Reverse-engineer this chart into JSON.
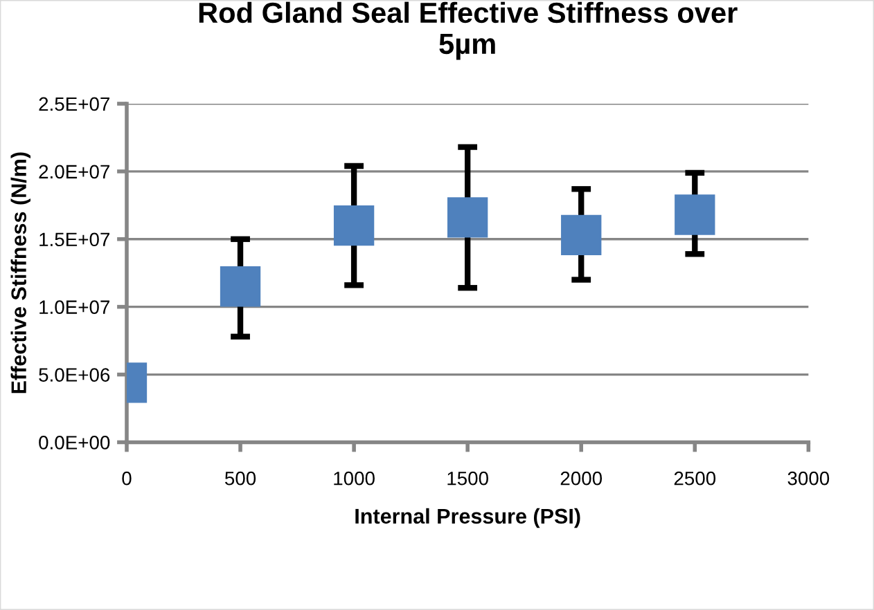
{
  "chart_data": {
    "type": "scatter",
    "title": "Rod Gland Seal Effective Stiffness over\n5µm",
    "xlabel": "Internal Pressure (PSI)",
    "ylabel": "Effective Stiffness (N/m)",
    "x": [
      0,
      500,
      1000,
      1500,
      2000,
      2500
    ],
    "series": [
      {
        "color": "#4f81bd",
        "values": [
          4400000,
          11500000,
          16000000,
          16600000,
          15300000,
          16800000
        ],
        "errors": [
          null,
          [
            7800000,
            15000000
          ],
          [
            11600000,
            20400000
          ],
          [
            11400000,
            21800000
          ],
          [
            12000000,
            18700000
          ],
          [
            13900000,
            19900000
          ]
        ]
      }
    ],
    "xlim": [
      0,
      3000
    ],
    "xticks": [
      0,
      500,
      1000,
      1500,
      2000,
      2500,
      3000
    ],
    "ylim": [
      0,
      25000000
    ],
    "yticks": [
      {
        "value": 0,
        "label": "0.0E+00"
      },
      {
        "value": 5000000,
        "label": "5.0E+06"
      },
      {
        "value": 10000000,
        "label": "1.0E+07"
      },
      {
        "value": 15000000,
        "label": "1.5E+07"
      },
      {
        "value": 20000000,
        "label": "2.0E+07"
      },
      {
        "value": 25000000,
        "label": "2.5E+07"
      }
    ],
    "grid": "y",
    "marker": "square",
    "legend": false
  }
}
